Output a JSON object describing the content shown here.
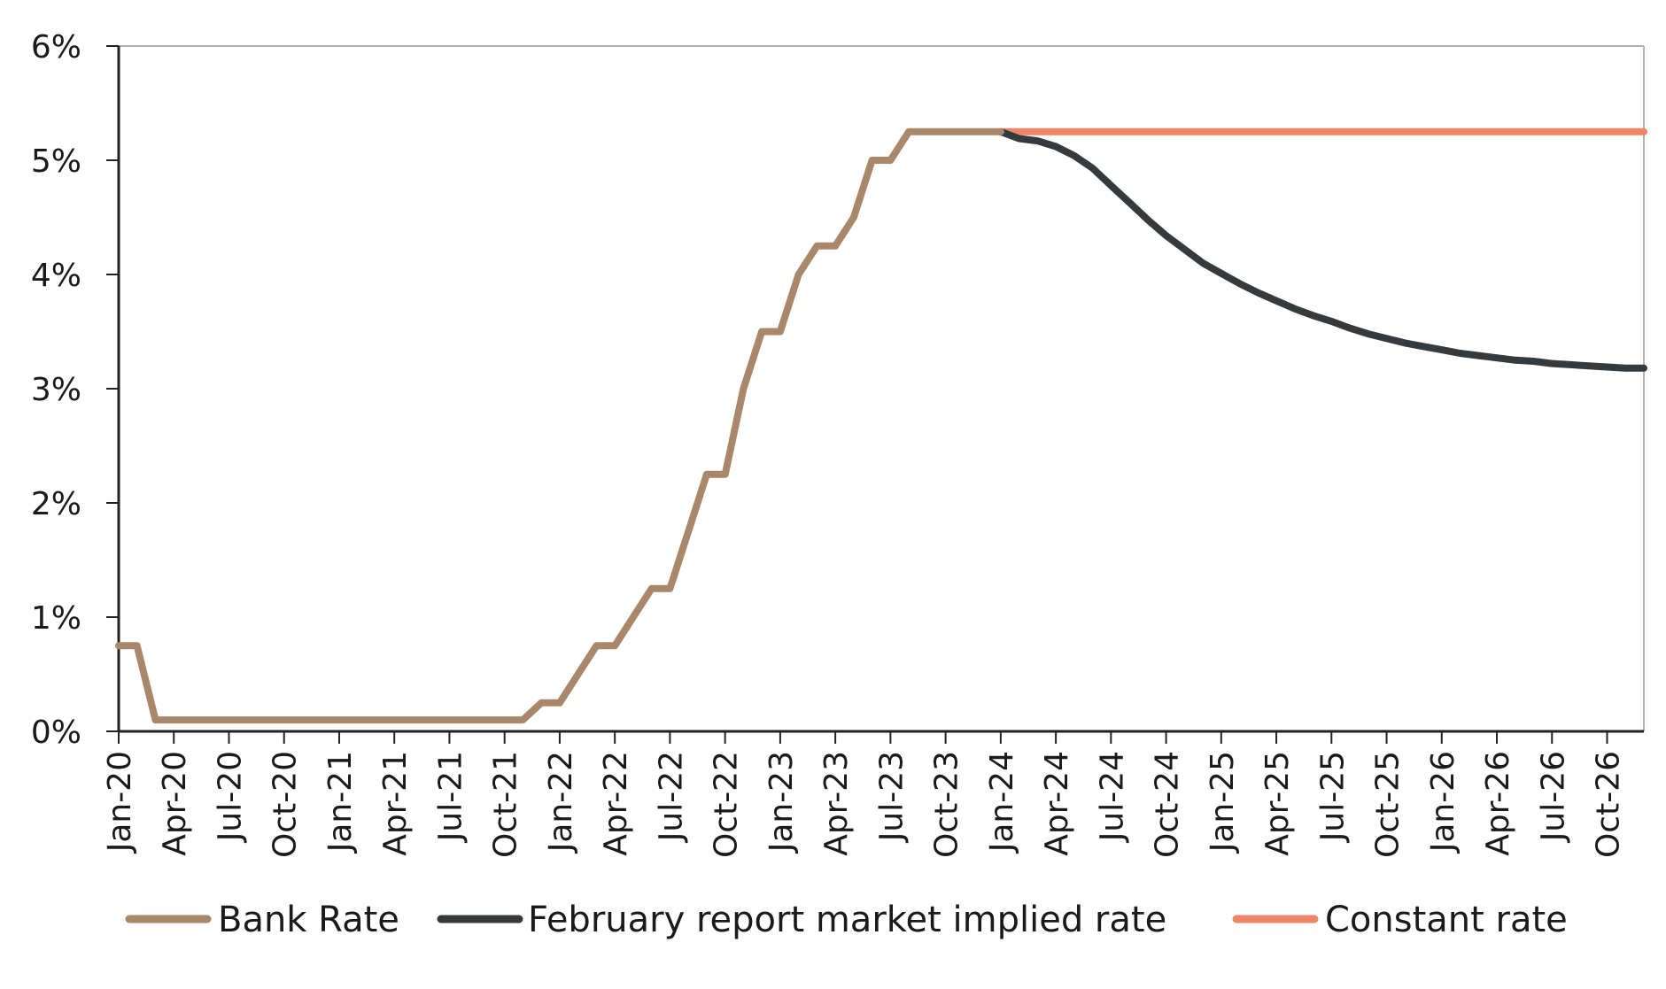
{
  "chart_data": {
    "type": "line",
    "title": "",
    "xlabel": "",
    "ylabel": "",
    "ylim": [
      0,
      6
    ],
    "y_ticks": [
      "0%",
      "1%",
      "2%",
      "3%",
      "4%",
      "5%",
      "6%"
    ],
    "x_range": [
      "2020-01",
      "2026-12"
    ],
    "x_ticks": [
      "Jan-20",
      "Apr-20",
      "Jul-20",
      "Oct-20",
      "Jan-21",
      "Apr-21",
      "Jul-21",
      "Oct-21",
      "Jan-22",
      "Apr-22",
      "Jul-22",
      "Oct-22",
      "Jan-23",
      "Apr-23",
      "Jul-23",
      "Oct-23",
      "Jan-24",
      "Apr-24",
      "Jul-24",
      "Oct-24",
      "Jan-25",
      "Apr-25",
      "Jul-25",
      "Oct-25",
      "Jan-26",
      "Apr-26",
      "Jul-26",
      "Oct-26"
    ],
    "grid": false,
    "legend_position": "bottom",
    "colors": {
      "bank_rate": "#A8876A",
      "market_implied": "#343A3D",
      "constant_rate": "#EE8566",
      "axis": "#222222",
      "frame": "#B3B3B3"
    },
    "series": [
      {
        "name": "Bank Rate",
        "color_key": "bank_rate",
        "step": true,
        "points": [
          [
            "2020-01",
            0.75
          ],
          [
            "2020-02",
            0.75
          ],
          [
            "2020-03",
            0.1
          ],
          [
            "2020-04",
            0.1
          ],
          [
            "2020-05",
            0.1
          ],
          [
            "2020-06",
            0.1
          ],
          [
            "2020-07",
            0.1
          ],
          [
            "2020-08",
            0.1
          ],
          [
            "2020-09",
            0.1
          ],
          [
            "2020-10",
            0.1
          ],
          [
            "2020-11",
            0.1
          ],
          [
            "2020-12",
            0.1
          ],
          [
            "2021-01",
            0.1
          ],
          [
            "2021-02",
            0.1
          ],
          [
            "2021-03",
            0.1
          ],
          [
            "2021-04",
            0.1
          ],
          [
            "2021-05",
            0.1
          ],
          [
            "2021-06",
            0.1
          ],
          [
            "2021-07",
            0.1
          ],
          [
            "2021-08",
            0.1
          ],
          [
            "2021-09",
            0.1
          ],
          [
            "2021-10",
            0.1
          ],
          [
            "2021-11",
            0.1
          ],
          [
            "2021-12",
            0.25
          ],
          [
            "2022-01",
            0.25
          ],
          [
            "2022-02",
            0.5
          ],
          [
            "2022-03",
            0.75
          ],
          [
            "2022-04",
            0.75
          ],
          [
            "2022-05",
            1.0
          ],
          [
            "2022-06",
            1.25
          ],
          [
            "2022-07",
            1.25
          ],
          [
            "2022-08",
            1.75
          ],
          [
            "2022-09",
            2.25
          ],
          [
            "2022-10",
            2.25
          ],
          [
            "2022-11",
            3.0
          ],
          [
            "2022-12",
            3.5
          ],
          [
            "2023-01",
            3.5
          ],
          [
            "2023-02",
            4.0
          ],
          [
            "2023-03",
            4.25
          ],
          [
            "2023-04",
            4.25
          ],
          [
            "2023-05",
            4.5
          ],
          [
            "2023-06",
            5.0
          ],
          [
            "2023-07",
            5.0
          ],
          [
            "2023-08",
            5.25
          ],
          [
            "2023-09",
            5.25
          ],
          [
            "2023-10",
            5.25
          ],
          [
            "2023-11",
            5.25
          ],
          [
            "2023-12",
            5.25
          ],
          [
            "2024-01",
            5.25
          ]
        ]
      },
      {
        "name": "February report market implied rate",
        "color_key": "market_implied",
        "step": false,
        "points": [
          [
            "2024-01",
            5.25
          ],
          [
            "2024-02",
            5.19
          ],
          [
            "2024-03",
            5.17
          ],
          [
            "2024-04",
            5.12
          ],
          [
            "2024-05",
            5.04
          ],
          [
            "2024-06",
            4.93
          ],
          [
            "2024-07",
            4.78
          ],
          [
            "2024-08",
            4.63
          ],
          [
            "2024-09",
            4.48
          ],
          [
            "2024-10",
            4.34
          ],
          [
            "2024-11",
            4.22
          ],
          [
            "2024-12",
            4.1
          ],
          [
            "2025-01",
            4.01
          ],
          [
            "2025-02",
            3.92
          ],
          [
            "2025-03",
            3.84
          ],
          [
            "2025-04",
            3.77
          ],
          [
            "2025-05",
            3.7
          ],
          [
            "2025-06",
            3.64
          ],
          [
            "2025-07",
            3.59
          ],
          [
            "2025-08",
            3.53
          ],
          [
            "2025-09",
            3.48
          ],
          [
            "2025-10",
            3.44
          ],
          [
            "2025-11",
            3.4
          ],
          [
            "2025-12",
            3.37
          ],
          [
            "2026-01",
            3.34
          ],
          [
            "2026-02",
            3.31
          ],
          [
            "2026-03",
            3.29
          ],
          [
            "2026-04",
            3.27
          ],
          [
            "2026-05",
            3.25
          ],
          [
            "2026-06",
            3.24
          ],
          [
            "2026-07",
            3.22
          ],
          [
            "2026-08",
            3.21
          ],
          [
            "2026-09",
            3.2
          ],
          [
            "2026-10",
            3.19
          ],
          [
            "2026-11",
            3.18
          ],
          [
            "2026-12",
            3.18
          ]
        ]
      },
      {
        "name": "Constant rate",
        "color_key": "constant_rate",
        "step": false,
        "points": [
          [
            "2024-01",
            5.25
          ],
          [
            "2026-12",
            5.25
          ]
        ]
      }
    ]
  }
}
